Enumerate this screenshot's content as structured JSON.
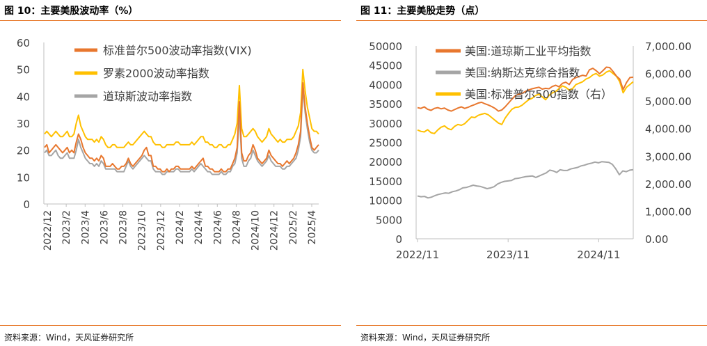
{
  "panels": [
    {
      "title": "图 10：主要美股波动率（%）",
      "source": "资料来源：Wind，天风证券研究所"
    },
    {
      "title": "图 11：主要美股走势（点）",
      "source": "资料来源：Wind，天风证券研究所"
    }
  ],
  "colors": {
    "orange": "#E8772E",
    "yellow": "#FFC000",
    "gray": "#A5A5A5",
    "rule": "#E87C2F"
  },
  "chart_data": [
    {
      "type": "line",
      "title": "",
      "xlabel": "",
      "ylabel": "",
      "ylim": [
        0,
        60
      ],
      "yticks": [
        "0",
        "10",
        "20",
        "30",
        "40",
        "50",
        "60"
      ],
      "xticks": [
        "2022/12",
        "2023/2",
        "2023/4",
        "2023/6",
        "2023/8",
        "2023/10",
        "2023/12",
        "2024/2",
        "2024/4",
        "2024/6",
        "2024/8",
        "2024/10",
        "2024/12",
        "2025/2",
        "2025/4"
      ],
      "legend": "top-left",
      "series": [
        {
          "name": "标准普尔500波动率指数(VIX)",
          "color": "#E8772E",
          "values": [
            21,
            22,
            19,
            20,
            21,
            22,
            21,
            20,
            19,
            20,
            21,
            19,
            20,
            19,
            23,
            26,
            24,
            21,
            19,
            18,
            17,
            17,
            16,
            17,
            16,
            18,
            17,
            14,
            14,
            14,
            15,
            14,
            13,
            13,
            14,
            14,
            15,
            17,
            15,
            14,
            15,
            16,
            17,
            18,
            20,
            21,
            18,
            18,
            14,
            14,
            13,
            13,
            12,
            12,
            13,
            12,
            13,
            13,
            14,
            14,
            13,
            13,
            13,
            13,
            13,
            14,
            13,
            14,
            15,
            16,
            17,
            14,
            14,
            13,
            13,
            12,
            12,
            12,
            13,
            12,
            12,
            13,
            13,
            15,
            17,
            21,
            38,
            19,
            16,
            16,
            18,
            19,
            22,
            20,
            17,
            16,
            15,
            16,
            17,
            20,
            18,
            17,
            16,
            15,
            15,
            14,
            15,
            16,
            15,
            16,
            17,
            19,
            22,
            27,
            45,
            36,
            30,
            25,
            21,
            20,
            21,
            22
          ]
        },
        {
          "name": "罗素2000波动率指数",
          "color": "#FFC000",
          "values": [
            26,
            27,
            26,
            25,
            26,
            27,
            26,
            25,
            25,
            26,
            27,
            25,
            25,
            26,
            30,
            33,
            29,
            27,
            25,
            24,
            24,
            24,
            23,
            24,
            23,
            25,
            24,
            22,
            21,
            21,
            22,
            22,
            21,
            21,
            21,
            21,
            22,
            23,
            22,
            22,
            23,
            24,
            25,
            26,
            27,
            26,
            25,
            25,
            23,
            22,
            22,
            22,
            21,
            21,
            22,
            22,
            22,
            22,
            23,
            23,
            22,
            22,
            22,
            22,
            22,
            23,
            22,
            23,
            24,
            25,
            25,
            23,
            23,
            22,
            22,
            21,
            21,
            22,
            22,
            21,
            21,
            22,
            22,
            24,
            26,
            30,
            44,
            28,
            25,
            25,
            26,
            27,
            28,
            27,
            25,
            24,
            23,
            24,
            25,
            28,
            26,
            25,
            24,
            23,
            24,
            23,
            23,
            24,
            24,
            24,
            25,
            27,
            29,
            34,
            50,
            42,
            36,
            32,
            28,
            27,
            27,
            26
          ]
        },
        {
          "name": "道琼斯波动率指数",
          "color": "#A5A5A5",
          "values": [
            19,
            20,
            18,
            18,
            19,
            20,
            18,
            17,
            17,
            18,
            19,
            17,
            17,
            17,
            20,
            24,
            21,
            19,
            17,
            16,
            15,
            15,
            14,
            15,
            14,
            16,
            15,
            13,
            13,
            13,
            13,
            13,
            12,
            12,
            12,
            12,
            14,
            16,
            14,
            13,
            14,
            15,
            16,
            17,
            18,
            17,
            16,
            16,
            13,
            12,
            12,
            12,
            11,
            11,
            12,
            12,
            12,
            12,
            13,
            13,
            12,
            12,
            12,
            12,
            12,
            13,
            12,
            13,
            14,
            15,
            14,
            13,
            12,
            12,
            11,
            11,
            11,
            11,
            12,
            11,
            11,
            12,
            12,
            14,
            15,
            19,
            33,
            17,
            14,
            14,
            16,
            17,
            20,
            18,
            16,
            15,
            14,
            15,
            16,
            18,
            16,
            15,
            14,
            14,
            14,
            13,
            13,
            14,
            14,
            15,
            16,
            17,
            20,
            25,
            43,
            34,
            28,
            23,
            20,
            19,
            19,
            20
          ]
        }
      ]
    },
    {
      "type": "line",
      "title": "",
      "xlabel": "",
      "ylabel": "",
      "ylim": [
        0,
        50000
      ],
      "ylim_right": [
        0,
        7000
      ],
      "yticks": [
        "0",
        "5000",
        "10000",
        "15000",
        "20000",
        "25000",
        "30000",
        "35000",
        "40000",
        "45000",
        "50000"
      ],
      "yticks_right": [
        "0.00",
        "1,000.00",
        "2,000.00",
        "3,000.00",
        "4,000.00",
        "5,000.00",
        "6,000.00",
        "7,000.00"
      ],
      "xticks": [
        "2022/11",
        "2023/11",
        "2024/11"
      ],
      "legend": "top-left",
      "series": [
        {
          "name": "美国:道琼斯工业平均指数",
          "color": "#E8772E",
          "axis": "left",
          "values": [
            34000,
            33800,
            34200,
            33600,
            33300,
            33800,
            34000,
            33700,
            33900,
            33400,
            33100,
            33500,
            33900,
            34200,
            33800,
            34100,
            34500,
            34800,
            35200,
            35400,
            35000,
            34700,
            34300,
            33800,
            33100,
            33400,
            34200,
            35200,
            36200,
            37100,
            37500,
            37700,
            38200,
            38600,
            38900,
            39100,
            39300,
            38800,
            39000,
            38900,
            39500,
            39800,
            39400,
            40300,
            40600,
            40000,
            41300,
            41800,
            42100,
            42400,
            42200,
            43800,
            44200,
            43600,
            42800,
            43600,
            44500,
            44400,
            43400,
            42200,
            41400,
            38700,
            40500,
            41800,
            41900
          ]
        },
        {
          "name": "美国:纳斯达克综合指数",
          "color": "#A5A5A5",
          "axis": "left",
          "values": [
            11100,
            10900,
            11000,
            10600,
            10800,
            11200,
            11500,
            11700,
            11900,
            11800,
            12200,
            12400,
            12700,
            13200,
            13300,
            13600,
            13900,
            13700,
            13600,
            13300,
            13000,
            13200,
            13500,
            14200,
            14600,
            14900,
            15000,
            15100,
            15600,
            15700,
            15900,
            16100,
            16200,
            16300,
            15900,
            16300,
            16700,
            17100,
            17800,
            17600,
            17200,
            17900,
            17700,
            17700,
            18100,
            18300,
            18500,
            18900,
            19100,
            19400,
            19600,
            19900,
            19700,
            20000,
            19900,
            19800,
            19300,
            18100,
            16600,
            17600,
            17400,
            17800,
            17900
          ]
        },
        {
          "name": "美国:标准普尔500指数（右）",
          "color": "#FFC000",
          "axis": "right",
          "values": [
            3950,
            3900,
            3880,
            3960,
            3850,
            3820,
            3950,
            4050,
            4100,
            4000,
            3960,
            4080,
            4150,
            4120,
            4180,
            4300,
            4420,
            4400,
            4480,
            4520,
            4550,
            4500,
            4400,
            4300,
            4200,
            4150,
            4380,
            4550,
            4700,
            4770,
            4780,
            4850,
            4950,
            5050,
            5100,
            5200,
            5250,
            5150,
            5050,
            5200,
            5300,
            5350,
            5450,
            5550,
            5500,
            5400,
            5450,
            5600,
            5650,
            5700,
            5800,
            5850,
            5950,
            6000,
            5900,
            5950,
            6050,
            6100,
            6000,
            5900,
            5700,
            5300,
            5500,
            5600,
            5700
          ]
        }
      ]
    }
  ]
}
